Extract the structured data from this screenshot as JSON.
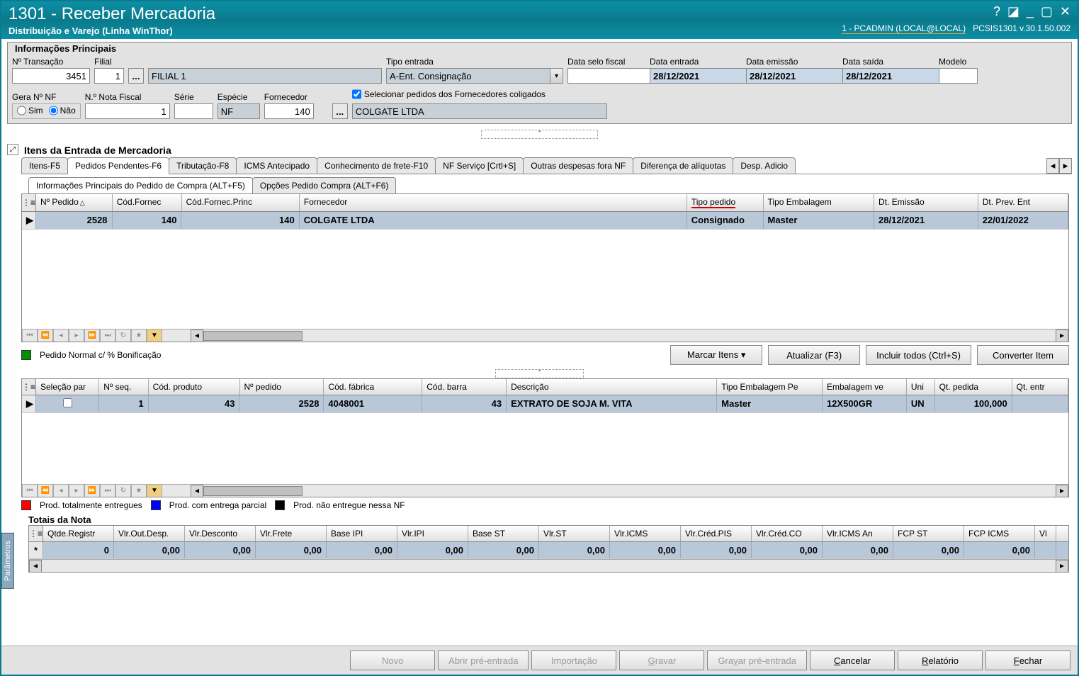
{
  "window": {
    "title": "1301 - Receber Mercadoria",
    "subtitle": "Distribuição e Varejo (Linha WinThor)",
    "user": "1 - PCADMIN (LOCAL@LOCAL)",
    "version": "PCSIS1301  v.30.1.50.002"
  },
  "top": {
    "group_title": "Informações Principais",
    "labels": {
      "transacao": "Nº Transação",
      "filial": "Filial",
      "tipo_entrada": "Tipo entrada",
      "data_selo": "Data selo fiscal",
      "data_entrada": "Data entrada",
      "data_emissao": "Data emissão",
      "data_saida": "Data saída",
      "modelo": "Modelo",
      "gera_nf": "Gera Nº NF",
      "sim": "Sim",
      "nao": "Não",
      "nota_fiscal": "N.º Nota Fiscal",
      "serie": "Série",
      "especie": "Espécie",
      "fornecedor": "Fornecedor",
      "checkbox_coligados": "Selecionar pedidos dos Fornecedores coligados"
    },
    "values": {
      "transacao": "3451",
      "filial_cod": "1",
      "filial_nome": "FILIAL 1",
      "tipo_entrada": "A-Ent. Consignação",
      "data_selo": "",
      "data_entrada": "28/12/2021",
      "data_emissao": "28/12/2021",
      "data_saida": "28/12/2021",
      "modelo": "",
      "nota_fiscal": "1",
      "serie": "",
      "especie": "NF",
      "fornecedor_cod": "140",
      "fornecedor_nome": "COLGATE LTDA",
      "gera_nf": "nao",
      "checkbox_coligados": true
    }
  },
  "section": {
    "title": "Itens da Entrada de Mercadoria",
    "tabs": [
      "Itens-F5",
      "Pedidos Pendentes-F6",
      "Tributação-F8",
      "ICMS Antecipado",
      "Conhecimento de frete-F10",
      "NF Serviço [Crtl+S]",
      "Outras despesas fora NF",
      "Diferença de alíquotas",
      "Desp. Adicio"
    ],
    "active_tab": 1,
    "subtabs": [
      "Informações Principais do Pedido de Compra (ALT+F5)",
      "Opções Pedido Compra (ALT+F6)"
    ],
    "active_subtab": 0
  },
  "grid1": {
    "columns": [
      "Nº Pedido",
      "Cód.Fornec",
      "Cód.Fornec.Princ",
      "Fornecedor",
      "Tipo pedido",
      "Tipo Embalagem",
      "Dt. Emissão",
      "Dt. Prev. Ent"
    ],
    "widths": [
      110,
      100,
      170,
      560,
      110,
      160,
      150,
      130
    ],
    "row": [
      "2528",
      "140",
      "140",
      "COLGATE LTDA",
      "Consignado",
      "Master",
      "28/12/2021",
      "22/01/2022"
    ],
    "tipo_pedido_redline": true
  },
  "legend_bonif": {
    "color": "#009000",
    "text": "Pedido Normal c/ % Bonificação"
  },
  "action_buttons": {
    "marcar": "Marcar Itens",
    "atualizar": "Atualizar (F3)",
    "incluir": "Incluir todos (Ctrl+S)",
    "converter": "Converter Item"
  },
  "grid2": {
    "columns": [
      "Seleção par",
      "Nº seq.",
      "Cód. produto",
      "Nº pedido",
      "Cód. fábrica",
      "Cód. barra",
      "Descrição",
      "Tipo Embalagem Pe",
      "Embalagem ve",
      "Uni",
      "Qt. pedida",
      "Qt. entr"
    ],
    "widths": [
      90,
      70,
      130,
      120,
      140,
      120,
      300,
      150,
      120,
      40,
      110,
      80
    ],
    "row": [
      "",
      "1",
      "43",
      "2528",
      "4048001",
      "43",
      "EXTRATO DE SOJA M. VITA",
      "Master",
      "12X500GR",
      "UN",
      "100,000",
      ""
    ]
  },
  "legend_prod": [
    {
      "color": "#ff0000",
      "text": "Prod. totalmente entregues"
    },
    {
      "color": "#0000ff",
      "text": "Prod. com entrega parcial"
    },
    {
      "color": "#000000",
      "text": "Prod. não entregue nessa NF"
    }
  ],
  "totals": {
    "title": "Totais da Nota",
    "columns": [
      "Qtde.Registr",
      "Vlr.Out.Desp.",
      "Vlr.Desconto",
      "Vlr.Frete",
      "Base IPI",
      "Vlr.IPI",
      "Base ST",
      "Vlr.ST",
      "Vlr.ICMS",
      "Vlr.Créd.PIS",
      "Vlr.Créd.CO",
      "Vlr.ICMS An",
      "FCP ST",
      "FCP ICMS",
      "Vl"
    ],
    "widths": [
      100,
      100,
      100,
      100,
      100,
      100,
      100,
      100,
      100,
      100,
      100,
      100,
      100,
      100,
      30
    ],
    "row": [
      "0",
      "0,00",
      "0,00",
      "0,00",
      "0,00",
      "0,00",
      "0,00",
      "0,00",
      "0,00",
      "0,00",
      "0,00",
      "0,00",
      "0,00",
      "0,00",
      ""
    ]
  },
  "footer": {
    "novo": "Novo",
    "abrir": "Abrir pré-entrada",
    "importacao": "Importação",
    "gravar": "Gravar",
    "gravar_pre": "Gravar pré-entrada",
    "cancelar": "Cancelar",
    "relatorio": "Relatório",
    "fechar": "Fechar"
  },
  "side_tabs": {
    "top": "",
    "bottom": "Parâmetros"
  }
}
